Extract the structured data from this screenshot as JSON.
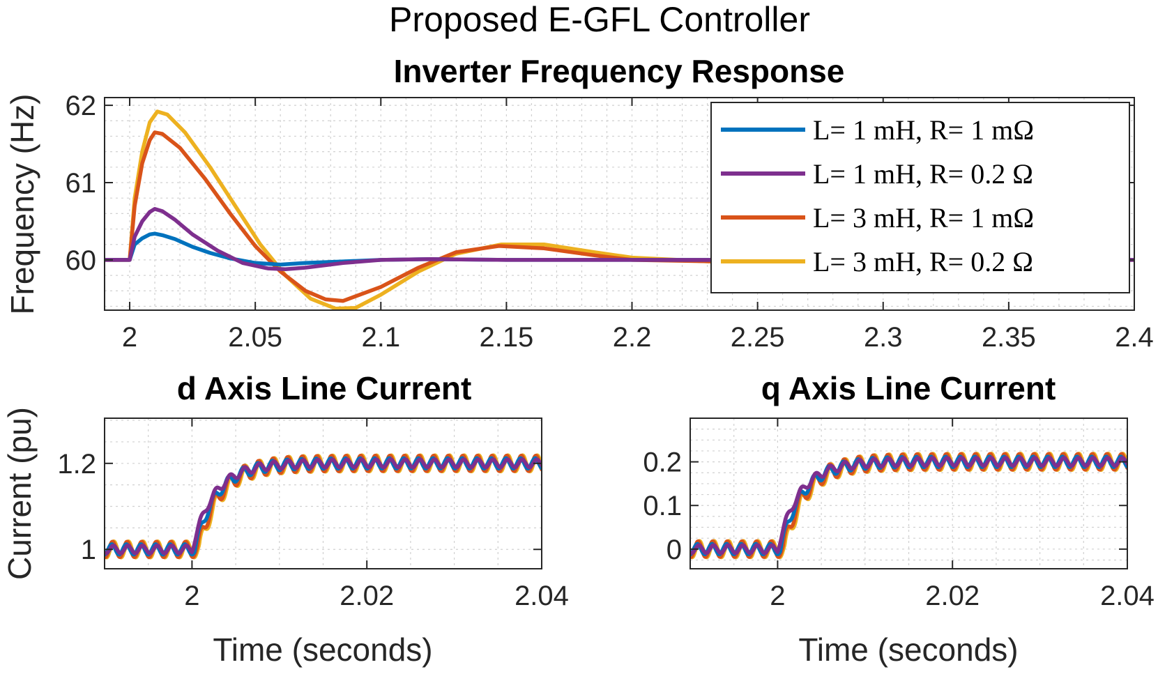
{
  "figure": {
    "suptitle": "Proposed E-GFL Controller",
    "colors": {
      "blue": "#0072BD",
      "purple": "#7E2F8E",
      "orange": "#D95319",
      "yellow": "#EDB120"
    }
  },
  "chart_data": [
    {
      "id": "freq",
      "type": "line",
      "title": "Inverter Frequency Response",
      "xlabel": "",
      "ylabel": "Frequency (Hz)",
      "xlim": [
        1.99,
        2.4
      ],
      "ylim": [
        59.35,
        62.1
      ],
      "xticks": [
        2,
        2.05,
        2.1,
        2.15,
        2.2,
        2.25,
        2.3,
        2.35,
        2.4
      ],
      "xtick_labels": [
        "2",
        "2.05",
        "2.1",
        "2.15",
        "2.2",
        "2.25",
        "2.3",
        "2.35",
        "2.4"
      ],
      "yticks": [
        60,
        61,
        62
      ],
      "ytick_labels": [
        "60",
        "61",
        "62"
      ],
      "grid": true,
      "legend_position": "top-right",
      "series": [
        {
          "name": "L= 1 mH, R= 1 mΩ",
          "color": "#0072BD",
          "x": [
            1.99,
            2.0,
            2.002,
            2.005,
            2.008,
            2.01,
            2.013,
            2.018,
            2.025,
            2.032,
            2.04,
            2.05,
            2.06,
            2.07,
            2.085,
            2.1,
            2.12,
            2.15,
            2.2,
            2.3,
            2.4
          ],
          "y": [
            60.0,
            60.0,
            60.2,
            60.28,
            60.33,
            60.34,
            60.32,
            60.27,
            60.17,
            60.09,
            60.02,
            59.96,
            59.94,
            59.96,
            59.98,
            60.0,
            60.01,
            60.0,
            60.0,
            60.0,
            60.0
          ]
        },
        {
          "name": "L= 1 mH, R= 0.2 Ω",
          "color": "#7E2F8E",
          "x": [
            1.99,
            2.0,
            2.002,
            2.005,
            2.008,
            2.01,
            2.013,
            2.018,
            2.025,
            2.035,
            2.045,
            2.055,
            2.062,
            2.07,
            2.085,
            2.1,
            2.12,
            2.15,
            2.2,
            2.3,
            2.4
          ],
          "y": [
            60.0,
            60.0,
            60.3,
            60.5,
            60.62,
            60.66,
            60.63,
            60.52,
            60.33,
            60.12,
            59.96,
            59.89,
            59.88,
            59.9,
            59.96,
            60.0,
            60.01,
            60.0,
            60.0,
            60.0,
            60.0
          ]
        },
        {
          "name": "L= 3 mH, R= 1 mΩ",
          "color": "#D95319",
          "x": [
            1.99,
            2.0,
            2.002,
            2.005,
            2.008,
            2.01,
            2.013,
            2.02,
            2.03,
            2.04,
            2.05,
            2.06,
            2.07,
            2.078,
            2.085,
            2.1,
            2.115,
            2.13,
            2.147,
            2.165,
            2.185,
            2.2,
            2.25,
            2.3,
            2.4
          ],
          "y": [
            60.0,
            60.0,
            60.7,
            61.25,
            61.55,
            61.65,
            61.63,
            61.45,
            61.05,
            60.6,
            60.18,
            59.85,
            59.6,
            59.49,
            59.47,
            59.65,
            59.9,
            60.1,
            60.18,
            60.15,
            60.06,
            60.0,
            59.97,
            60.0,
            60.0
          ]
        },
        {
          "name": "L= 3 mH, R= 0.2 Ω",
          "color": "#EDB120",
          "x": [
            1.99,
            2.0,
            2.002,
            2.005,
            2.008,
            2.011,
            2.015,
            2.022,
            2.032,
            2.042,
            2.052,
            2.062,
            2.072,
            2.082,
            2.09,
            2.1,
            2.115,
            2.13,
            2.148,
            2.165,
            2.185,
            2.2,
            2.25,
            2.3,
            2.4
          ],
          "y": [
            60.0,
            60.0,
            60.8,
            61.4,
            61.78,
            61.92,
            61.88,
            61.65,
            61.2,
            60.7,
            60.2,
            59.8,
            59.5,
            59.37,
            59.38,
            59.55,
            59.85,
            60.08,
            60.2,
            60.2,
            60.1,
            60.03,
            59.95,
            60.0,
            60.0
          ]
        }
      ]
    },
    {
      "id": "d",
      "type": "line",
      "title": "d Axis Line Current",
      "xlabel": "Time (seconds)",
      "ylabel": "Current (pu)",
      "xlim": [
        1.99,
        2.04
      ],
      "ylim": [
        0.955,
        1.305
      ],
      "xticks": [
        2,
        2.02,
        2.04
      ],
      "xtick_labels": [
        "2",
        "2.02",
        "2.04"
      ],
      "yticks": [
        1,
        1.2
      ],
      "ytick_labels": [
        "1",
        "1.2"
      ],
      "grid": true,
      "ripple_amplitude": 0.015,
      "ripple_period": 0.00167,
      "step": {
        "t0": 2.0,
        "initial": 1.0,
        "final": 1.2,
        "time_constant": 0.0025
      }
    },
    {
      "id": "q",
      "type": "line",
      "title": "q Axis Line Current",
      "xlabel": "Time (seconds)",
      "ylabel": "",
      "xlim": [
        1.99,
        2.04
      ],
      "ylim": [
        -0.045,
        0.3
      ],
      "xticks": [
        2,
        2.02,
        2.04
      ],
      "xtick_labels": [
        "2",
        "2.02",
        "2.04"
      ],
      "yticks": [
        0,
        0.1,
        0.2
      ],
      "ytick_labels": [
        "0",
        "0.1",
        "0.2"
      ],
      "grid": true,
      "ripple_amplitude": 0.015,
      "ripple_period": 0.00167,
      "step": {
        "t0": 2.0,
        "initial": 0.0,
        "final": 0.2,
        "time_constant": 0.0025
      }
    }
  ]
}
